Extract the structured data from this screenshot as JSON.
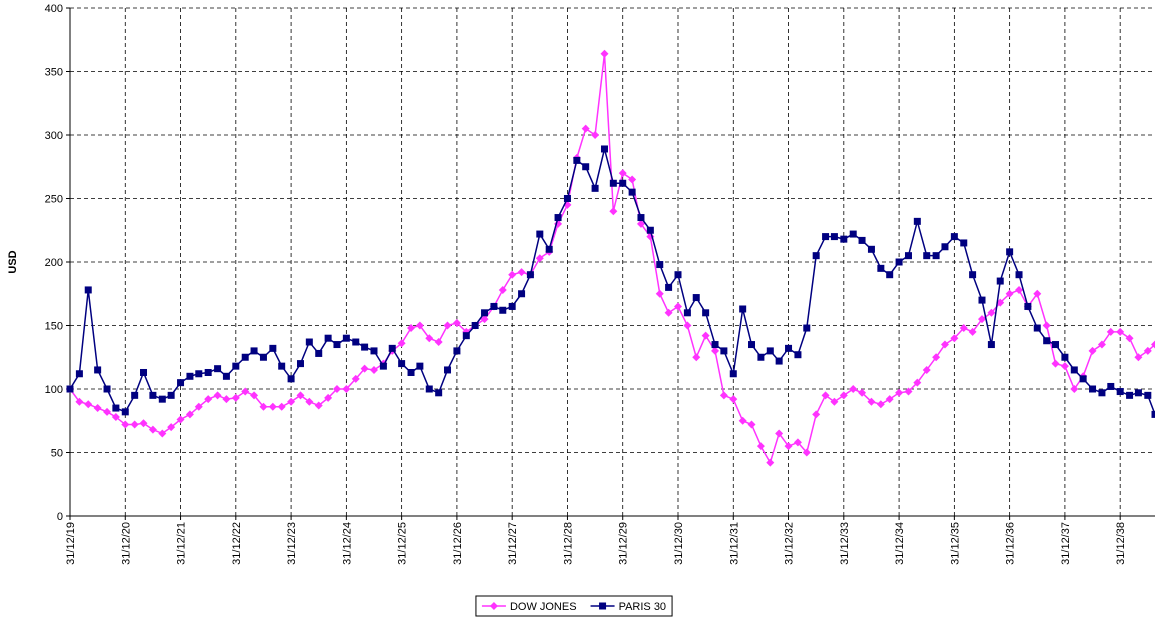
{
  "chart_data": {
    "type": "line",
    "y_label": "USD",
    "xlim": [
      19,
      38.63
    ],
    "xticks": [
      {
        "value": 19,
        "label": "31/12/19"
      },
      {
        "value": 20,
        "label": "31/12/20"
      },
      {
        "value": 21,
        "label": "31/12/21"
      },
      {
        "value": 22,
        "label": "31/12/22"
      },
      {
        "value": 23,
        "label": "31/12/23"
      },
      {
        "value": 24,
        "label": "31/12/24"
      },
      {
        "value": 25,
        "label": "31/12/25"
      },
      {
        "value": 26,
        "label": "31/12/26"
      },
      {
        "value": 27,
        "label": "31/12/27"
      },
      {
        "value": 28,
        "label": "31/12/28"
      },
      {
        "value": 29,
        "label": "31/12/29"
      },
      {
        "value": 30,
        "label": "31/12/30"
      },
      {
        "value": 31,
        "label": "31/12/31"
      },
      {
        "value": 32,
        "label": "31/12/32"
      },
      {
        "value": 33,
        "label": "31/12/33"
      },
      {
        "value": 34,
        "label": "31/12/34"
      },
      {
        "value": 35,
        "label": "31/12/35"
      },
      {
        "value": 36,
        "label": "31/12/36"
      },
      {
        "value": 37,
        "label": "31/12/37"
      },
      {
        "value": 38,
        "label": "31/12/38"
      }
    ],
    "ylim": [
      0,
      400
    ],
    "yticks": [
      0,
      50,
      100,
      150,
      200,
      250,
      300,
      350,
      400
    ],
    "grid": true,
    "legend": "bottom",
    "x": [
      19,
      19.17,
      19.33,
      19.5,
      19.67,
      19.83,
      20,
      20.17,
      20.33,
      20.5,
      20.67,
      20.83,
      21,
      21.17,
      21.33,
      21.5,
      21.67,
      21.83,
      22,
      22.17,
      22.33,
      22.5,
      22.67,
      22.83,
      23,
      23.17,
      23.33,
      23.5,
      23.67,
      23.83,
      24,
      24.17,
      24.33,
      24.5,
      24.67,
      24.83,
      25,
      25.17,
      25.33,
      25.5,
      25.67,
      25.83,
      26,
      26.17,
      26.33,
      26.5,
      26.67,
      26.83,
      27,
      27.17,
      27.33,
      27.5,
      27.67,
      27.83,
      28,
      28.17,
      28.33,
      28.5,
      28.67,
      28.83,
      29,
      29.17,
      29.33,
      29.5,
      29.67,
      29.83,
      30,
      30.17,
      30.33,
      30.5,
      30.67,
      30.83,
      31,
      31.17,
      31.33,
      31.5,
      31.67,
      31.83,
      32,
      32.17,
      32.33,
      32.5,
      32.67,
      32.83,
      33,
      33.17,
      33.33,
      33.5,
      33.67,
      33.83,
      34,
      34.17,
      34.33,
      34.5,
      34.67,
      34.83,
      35,
      35.17,
      35.33,
      35.5,
      35.67,
      35.83,
      36,
      36.17,
      36.33,
      36.5,
      36.67,
      36.83,
      37,
      37.17,
      37.33,
      37.5,
      37.67,
      37.83,
      38,
      38.17,
      38.33,
      38.5,
      38.63
    ],
    "series": [
      {
        "name": "DOW JONES",
        "color": "#ff33ff",
        "marker": "diamond",
        "values": [
          100,
          90,
          88,
          85,
          82,
          78,
          72,
          72,
          73,
          68,
          65,
          70,
          76,
          80,
          86,
          92,
          95,
          92,
          93,
          98,
          95,
          86,
          86,
          86,
          90,
          95,
          90,
          87,
          93,
          100,
          100,
          108,
          116,
          115,
          120,
          130,
          136,
          148,
          150,
          140,
          137,
          150,
          152,
          145,
          150,
          155,
          165,
          178,
          190,
          192,
          190,
          203,
          208,
          230,
          245,
          282,
          305,
          300,
          364,
          240,
          270,
          265,
          230,
          220,
          175,
          160,
          165,
          150,
          125,
          142,
          130,
          95,
          92,
          75,
          72,
          55,
          42,
          65,
          55,
          58,
          50,
          80,
          95,
          90,
          95,
          100,
          97,
          90,
          88,
          92,
          97,
          98,
          105,
          115,
          125,
          135,
          140,
          148,
          145,
          155,
          160,
          168,
          175,
          178,
          165,
          175,
          150,
          120,
          118,
          100,
          110,
          130,
          135,
          145,
          145,
          140,
          125,
          130,
          135
        ]
      },
      {
        "name": "PARIS 30",
        "color": "#000080",
        "marker": "square",
        "values": [
          100,
          112,
          178,
          115,
          100,
          85,
          82,
          95,
          113,
          95,
          92,
          95,
          105,
          110,
          112,
          113,
          116,
          110,
          118,
          125,
          130,
          125,
          132,
          118,
          108,
          120,
          137,
          128,
          140,
          135,
          140,
          137,
          133,
          130,
          118,
          132,
          120,
          113,
          118,
          100,
          97,
          115,
          130,
          142,
          150,
          160,
          165,
          162,
          165,
          175,
          190,
          222,
          210,
          235,
          250,
          280,
          275,
          258,
          289,
          262,
          262,
          255,
          235,
          225,
          198,
          180,
          190,
          160,
          172,
          160,
          135,
          130,
          112,
          163,
          135,
          125,
          130,
          122,
          132,
          127,
          148,
          205,
          220,
          220,
          218,
          222,
          217,
          210,
          195,
          190,
          200,
          205,
          232,
          205,
          205,
          212,
          220,
          215,
          190,
          170,
          135,
          185,
          208,
          190,
          165,
          148,
          138,
          135,
          125,
          115,
          108,
          100,
          97,
          102,
          98,
          95,
          97,
          95,
          80
        ]
      }
    ]
  }
}
